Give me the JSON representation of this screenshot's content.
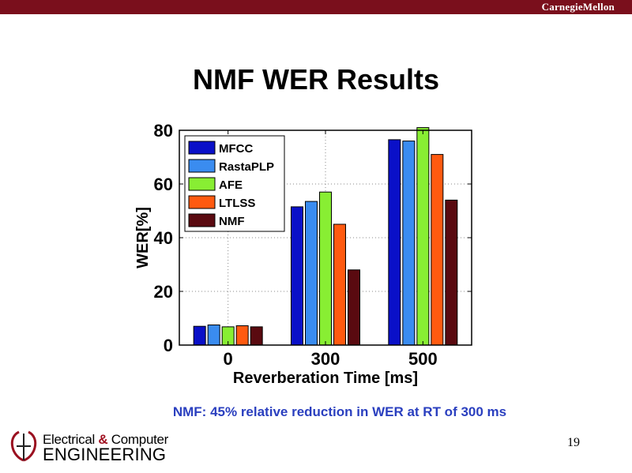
{
  "header": {
    "brand": "CarnegieMellon"
  },
  "slide": {
    "title": "NMF WER Results",
    "caption": "NMF: 45% relative reduction in WER at RT of 300 ms",
    "page_number": "19"
  },
  "logo": {
    "line1_a": "Electrical ",
    "line1_amp": "&",
    "line1_b": " Computer",
    "line2": "ENGINEERING"
  },
  "colors": {
    "MFCC": "#0a10c8",
    "RastaPLP": "#3a8cf0",
    "AFE": "#88ee33",
    "LTLSS": "#ff5a10",
    "NMF": "#5a0a10",
    "brand_bar": "#7a0f1c",
    "caption": "#2a3fbf"
  },
  "chart_data": {
    "type": "bar",
    "title": "",
    "xlabel": "Reverberation Time [ms]",
    "ylabel": "WER[%]",
    "categories": [
      "0",
      "300",
      "500"
    ],
    "ylim": [
      0,
      80
    ],
    "yticks": [
      0,
      20,
      40,
      60,
      80
    ],
    "grid": true,
    "legend": "top-left",
    "series": [
      {
        "name": "MFCC",
        "values": [
          7.0,
          51.5,
          76.5
        ]
      },
      {
        "name": "RastaPLP",
        "values": [
          7.5,
          53.5,
          76.0
        ]
      },
      {
        "name": "AFE",
        "values": [
          6.8,
          57.0,
          81.0
        ]
      },
      {
        "name": "LTLSS",
        "values": [
          7.2,
          45.0,
          71.0
        ]
      },
      {
        "name": "NMF",
        "values": [
          6.8,
          28.0,
          54.0
        ]
      }
    ]
  }
}
